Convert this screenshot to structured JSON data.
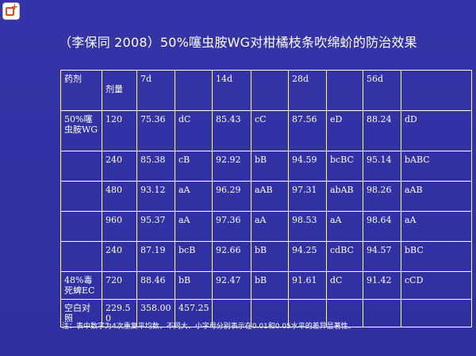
{
  "title": "（李保同 2008）50%噻虫胺WG对柑橘枝条吹绵蚧的防治效果",
  "table": {
    "header": {
      "agent": "药剂",
      "dose": "剂量",
      "d7": "7d",
      "d14": "14d",
      "d28": "28d",
      "d56": "56d"
    },
    "groups": [
      {
        "name": "50%噻虫胺WG",
        "rows": [
          0,
          1,
          2,
          3,
          4
        ]
      },
      {
        "name": "48%毒死蜱EC",
        "rows": [
          5
        ]
      },
      {
        "name": "空白对照",
        "rows": [
          6
        ]
      }
    ],
    "rows": [
      {
        "agent": "50%噻虫胺WG",
        "dose": "120",
        "v7": "75.36",
        "s7": "dC",
        "v14": "85.43",
        "s14": "cC",
        "v28": "87.56",
        "s28": "eD",
        "v56": "88.24",
        "s56": "dD"
      },
      {
        "agent": "",
        "dose": "240",
        "v7": "85.38",
        "s7": "cB",
        "v14": "92.92",
        "s14": "bB",
        "v28": "94.59",
        "s28": "bcBC",
        "v56": "95.14",
        "s56": "bABC"
      },
      {
        "agent": "",
        "dose": "480",
        "v7": "93.12",
        "s7": "aA",
        "v14": "96.29",
        "s14": "aAB",
        "v28": "97.31",
        "s28": "abAB",
        "v56": "98.26",
        "s56": "aAB"
      },
      {
        "agent": "",
        "dose": "960",
        "v7": "95.37",
        "s7": "aA",
        "v14": "97.36",
        "s14": "aA",
        "v28": "98.53",
        "s28": "aA",
        "v56": "98.64",
        "s56": "aA"
      },
      {
        "agent": "",
        "dose": "240",
        "v7": "87.19",
        "s7": "bcB",
        "v14": "92.66",
        "s14": "bB",
        "v28": "94.25",
        "s28": "cdBC",
        "v56": "94.57",
        "s56": "bBC"
      },
      {
        "agent": "48%毒死蜱EC",
        "dose": "720",
        "v7": "88.46",
        "s7": "bB",
        "v14": "92.47",
        "s14": "bB",
        "v28": "91.61",
        "s28": "dC",
        "v56": "91.42",
        "s56": "cCD"
      },
      {
        "agent": "空白对照",
        "dose": "229.50",
        "v7": "358.00",
        "s7": "457.25",
        "v14": "",
        "s14": "",
        "v28": "",
        "s28": "",
        "v56": "",
        "s56": ""
      }
    ]
  },
  "note": "注：表中数字为4次重复平均数，不同大、小字母分别表示在0.01和0.05水平的差异显著性。",
  "colors": {
    "background": "#3131a3",
    "text": "#ffffff",
    "logo_accent": "#e24a1d"
  },
  "icons": {
    "logo": "add-box-icon"
  }
}
